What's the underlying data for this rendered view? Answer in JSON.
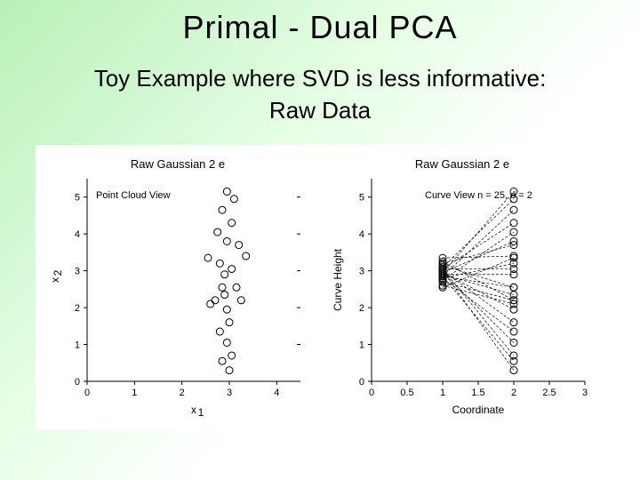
{
  "slide": {
    "title": "Primal - Dual PCA",
    "subtitle_line1": "Toy Example where SVD is less informative:",
    "subtitle_line2": "Raw Data"
  },
  "left_chart": {
    "type": "scatter",
    "title": "Raw Gaussian 2 e",
    "xlabel": "x₁",
    "xlabel_sub": "1",
    "ylabel": "x₂",
    "ylabel_sub": "2",
    "inset_label": "Point Cloud View",
    "xlim": [
      0,
      4.5
    ],
    "ylim": [
      0,
      5.5
    ],
    "xticks": [
      0,
      1,
      2,
      3,
      4
    ],
    "yticks": [
      0,
      1,
      2,
      3,
      4,
      5
    ],
    "marker_radius": 4,
    "marker_stroke": "#000000",
    "background_color": "#ffffff",
    "points": [
      [
        2.95,
        5.15
      ],
      [
        3.1,
        4.95
      ],
      [
        2.85,
        4.65
      ],
      [
        3.05,
        4.3
      ],
      [
        2.75,
        4.05
      ],
      [
        2.95,
        3.8
      ],
      [
        3.2,
        3.7
      ],
      [
        3.35,
        3.4
      ],
      [
        2.55,
        3.35
      ],
      [
        2.8,
        3.2
      ],
      [
        3.05,
        3.05
      ],
      [
        2.9,
        2.9
      ],
      [
        3.15,
        2.55
      ],
      [
        2.85,
        2.55
      ],
      [
        2.9,
        2.35
      ],
      [
        2.7,
        2.2
      ],
      [
        2.6,
        2.1
      ],
      [
        2.95,
        1.95
      ],
      [
        3.25,
        2.2
      ],
      [
        3.0,
        1.6
      ],
      [
        2.8,
        1.35
      ],
      [
        2.95,
        1.05
      ],
      [
        3.05,
        0.7
      ],
      [
        2.85,
        0.55
      ],
      [
        3.0,
        0.3
      ]
    ]
  },
  "right_chart": {
    "type": "line-scatter",
    "title": "Raw Gaussian 2 e",
    "xlabel": "Coordinate",
    "ylabel": "Curve Height",
    "inset_label": "Curve View n = 25, d = 2",
    "xlim": [
      0,
      3
    ],
    "ylim": [
      0,
      5.5
    ],
    "xticks": [
      0,
      0.5,
      1,
      1.5,
      2,
      2.5,
      3
    ],
    "yticks": [
      0,
      1,
      2,
      3,
      4,
      5
    ],
    "marker_radius": 4,
    "line_color": "#000000",
    "line_dash": "3,2",
    "curves": [
      [
        2.95,
        5.15
      ],
      [
        3.1,
        4.95
      ],
      [
        2.85,
        4.65
      ],
      [
        3.05,
        4.3
      ],
      [
        2.75,
        4.05
      ],
      [
        2.95,
        3.8
      ],
      [
        3.2,
        3.7
      ],
      [
        3.35,
        3.4
      ],
      [
        2.55,
        3.35
      ],
      [
        2.8,
        3.2
      ],
      [
        3.05,
        3.05
      ],
      [
        2.9,
        2.9
      ],
      [
        3.15,
        2.55
      ],
      [
        2.85,
        2.55
      ],
      [
        2.9,
        2.35
      ],
      [
        2.7,
        2.2
      ],
      [
        2.6,
        2.1
      ],
      [
        2.95,
        1.95
      ],
      [
        3.25,
        2.2
      ],
      [
        3.0,
        1.6
      ],
      [
        2.8,
        1.35
      ],
      [
        2.95,
        1.05
      ],
      [
        3.05,
        0.7
      ],
      [
        2.85,
        0.55
      ],
      [
        3.0,
        0.3
      ]
    ],
    "x_nodes": [
      1,
      2
    ]
  },
  "style": {
    "title_fontsize": 36,
    "subtitle_fontsize": 26,
    "chart_title_fontsize": 13,
    "axis_label_fontsize": 12,
    "tick_fontsize": 11,
    "panel_bg": "#ffffff",
    "slide_gradient_from": "#b8f0b8",
    "slide_gradient_to": "#ffffff"
  }
}
